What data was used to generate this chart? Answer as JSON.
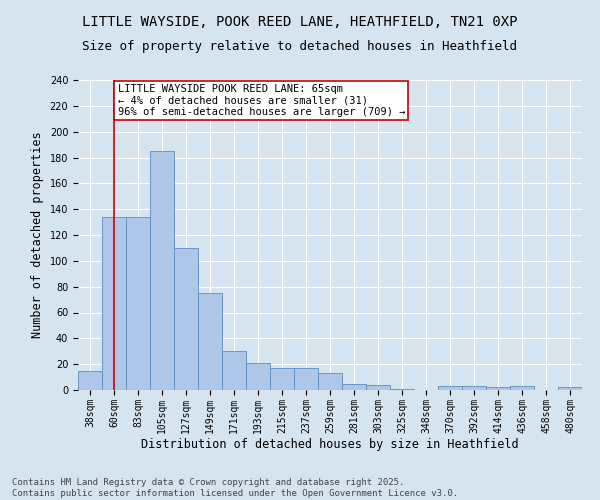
{
  "title_line1": "LITTLE WAYSIDE, POOK REED LANE, HEATHFIELD, TN21 0XP",
  "title_line2": "Size of property relative to detached houses in Heathfield",
  "xlabel": "Distribution of detached houses by size in Heathfield",
  "ylabel": "Number of detached properties",
  "categories": [
    "38sqm",
    "60sqm",
    "83sqm",
    "105sqm",
    "127sqm",
    "149sqm",
    "171sqm",
    "193sqm",
    "215sqm",
    "237sqm",
    "259sqm",
    "281sqm",
    "303sqm",
    "325sqm",
    "348sqm",
    "370sqm",
    "392sqm",
    "414sqm",
    "436sqm",
    "458sqm",
    "480sqm"
  ],
  "values": [
    15,
    134,
    134,
    185,
    110,
    75,
    30,
    21,
    17,
    17,
    13,
    5,
    4,
    1,
    0,
    3,
    3,
    2,
    3,
    0,
    2
  ],
  "bar_color": "#aec6e8",
  "bar_edge_color": "#5a8fc0",
  "vline_x_index": 1,
  "vline_color": "#cc0000",
  "annotation_text": "LITTLE WAYSIDE POOK REED LANE: 65sqm\n← 4% of detached houses are smaller (31)\n96% of semi-detached houses are larger (709) →",
  "annotation_box_color": "#ffffff",
  "annotation_box_edge_color": "#cc0000",
  "ylim": [
    0,
    240
  ],
  "yticks": [
    0,
    20,
    40,
    60,
    80,
    100,
    120,
    140,
    160,
    180,
    200,
    220,
    240
  ],
  "background_color": "#d6e4f0",
  "plot_background_color": "#d6e4f0",
  "footer_text": "Contains HM Land Registry data © Crown copyright and database right 2025.\nContains public sector information licensed under the Open Government Licence v3.0.",
  "title_fontsize": 10,
  "subtitle_fontsize": 9,
  "axis_label_fontsize": 8.5,
  "tick_fontsize": 7,
  "footer_fontsize": 6.5,
  "annotation_fontsize": 7.5
}
